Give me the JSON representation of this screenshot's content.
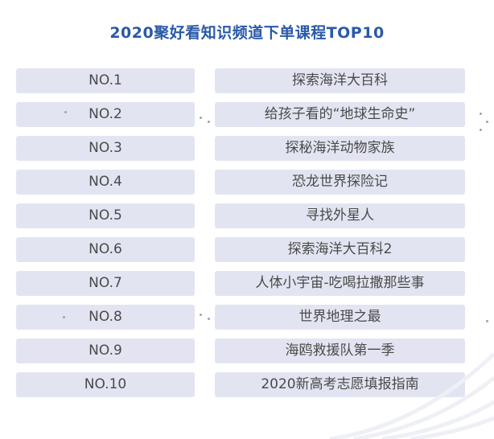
{
  "title": "2020聚好看知识频道下单课程TOP10",
  "ranking": [
    {
      "rank": "NO.1",
      "course": "探索海洋大百科"
    },
    {
      "rank": "NO.2",
      "course": "给孩子看的“地球生命史”"
    },
    {
      "rank": "NO.3",
      "course": "探秘海洋动物家族"
    },
    {
      "rank": "NO.4",
      "course": "恐龙世界探险记"
    },
    {
      "rank": "NO.5",
      "course": "寻找外星人"
    },
    {
      "rank": "NO.6",
      "course": "探索海洋大百科2"
    },
    {
      "rank": "NO.7",
      "course": "人体小宇宙-吃喝拉撒那些事"
    },
    {
      "rank": "NO.8",
      "course": "世界地理之最"
    },
    {
      "rank": "NO.9",
      "course": "海鸥救援队第一季"
    },
    {
      "rank": "NO.10",
      "course": "2020新高考志愿填报指南"
    }
  ]
}
